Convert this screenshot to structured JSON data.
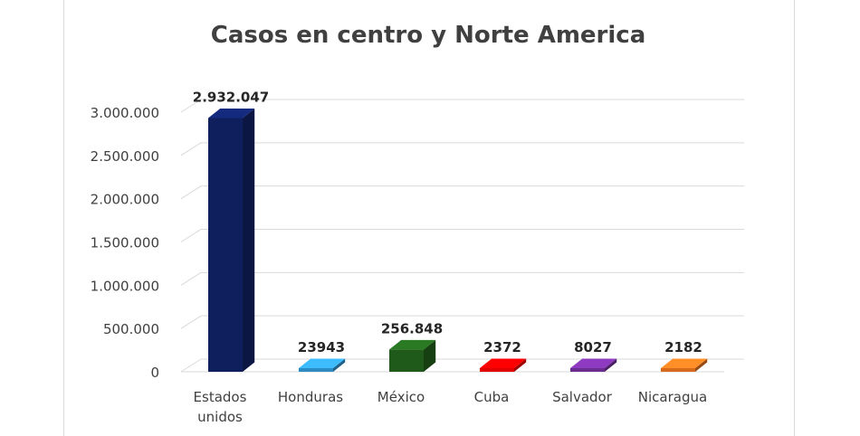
{
  "chart_data": {
    "type": "bar",
    "title": "Casos en centro y Norte America",
    "xlabel": "",
    "ylabel": "",
    "ylim": [
      0,
      3000000
    ],
    "y_ticks": [
      "0",
      "500.000",
      "1.000.000",
      "1.500.000",
      "2.000.000",
      "2.500.000",
      "3.000.000"
    ],
    "grid": true,
    "legend": "none",
    "style": "3d-column",
    "categories": [
      [
        "Estados",
        "unidos"
      ],
      [
        "Honduras"
      ],
      [
        "México"
      ],
      [
        "Cuba"
      ],
      [
        "Salvador"
      ],
      [
        "Nicaragua"
      ]
    ],
    "values": [
      2932047,
      23943,
      256848,
      2372,
      8027,
      2182
    ],
    "data_labels": [
      "2.932.047",
      "23943",
      "256.848",
      "2372",
      "8027",
      "2182"
    ],
    "colors": [
      "#0f1f5e",
      "#2d8bc4",
      "#1f5a1a",
      "#e00000",
      "#6a2c8f",
      "#d86a1c"
    ]
  }
}
